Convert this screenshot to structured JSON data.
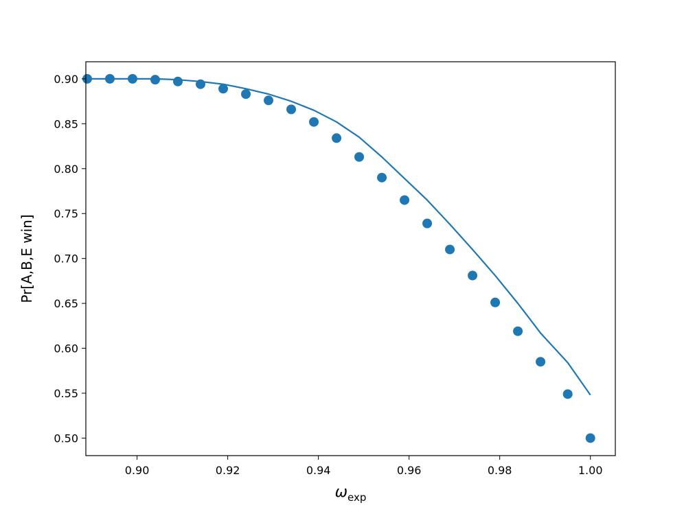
{
  "chart_data": {
    "type": "scatter",
    "xlabel": "ω",
    "xlabel_subscript": "exp",
    "ylabel": "Pr[A,B,E win]",
    "xlim": [
      0.8887,
      1.0055
    ],
    "ylim": [
      0.4805,
      0.919
    ],
    "xticks": [
      "0.90",
      "0.92",
      "0.94",
      "0.96",
      "0.98",
      "1.00"
    ],
    "yticks": [
      "0.50",
      "0.55",
      "0.60",
      "0.65",
      "0.70",
      "0.75",
      "0.80",
      "0.85",
      "0.90"
    ],
    "grid": false,
    "color": "#1f77b4",
    "series": [
      {
        "kind": "points",
        "x": [
          0.889,
          0.894,
          0.899,
          0.904,
          0.909,
          0.914,
          0.919,
          0.924,
          0.929,
          0.934,
          0.939,
          0.944,
          0.949,
          0.954,
          0.959,
          0.964,
          0.969,
          0.974,
          0.979,
          0.984,
          0.989,
          0.995,
          1.0
        ],
        "y": [
          0.9,
          0.9,
          0.9,
          0.899,
          0.897,
          0.894,
          0.889,
          0.883,
          0.876,
          0.866,
          0.852,
          0.834,
          0.813,
          0.79,
          0.765,
          0.739,
          0.71,
          0.681,
          0.651,
          0.619,
          0.585,
          0.549,
          0.5
        ]
      },
      {
        "kind": "line",
        "x": [
          0.889,
          0.894,
          0.899,
          0.904,
          0.909,
          0.914,
          0.919,
          0.924,
          0.929,
          0.934,
          0.939,
          0.944,
          0.949,
          0.954,
          0.959,
          0.964,
          0.969,
          0.974,
          0.979,
          0.984,
          0.989,
          0.995,
          1.0
        ],
        "y": [
          0.9,
          0.9,
          0.9,
          0.9,
          0.899,
          0.897,
          0.894,
          0.889,
          0.883,
          0.875,
          0.865,
          0.852,
          0.835,
          0.813,
          0.789,
          0.765,
          0.738,
          0.71,
          0.681,
          0.65,
          0.617,
          0.584,
          0.548
        ]
      }
    ]
  }
}
